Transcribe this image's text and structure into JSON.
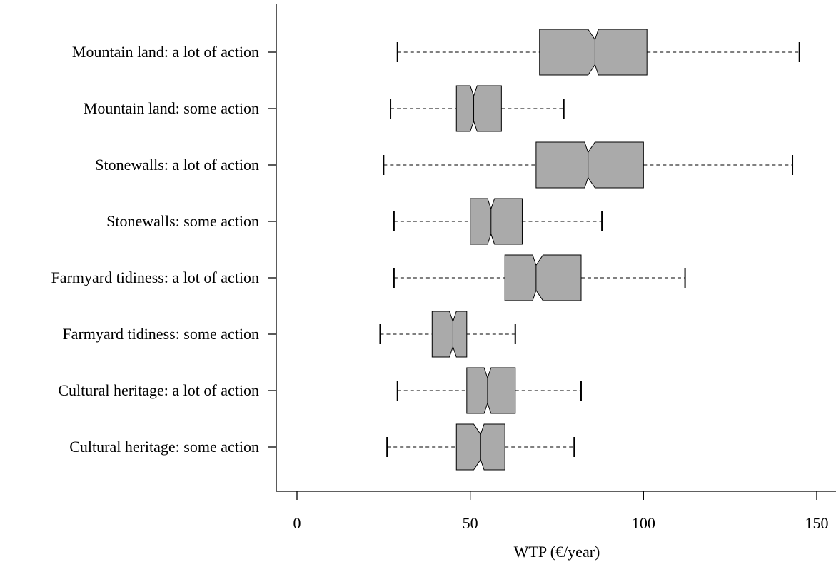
{
  "chart_data": {
    "type": "boxplot",
    "notched": true,
    "orientation": "horizontal",
    "title": "",
    "xlabel": "WTP (€/year)",
    "ylabel": "",
    "xlim": [
      -6,
      156
    ],
    "xticks": [
      0,
      50,
      100,
      150
    ],
    "grid": false,
    "box_color": "#aaaaaa",
    "categories": [
      "Mountain land: a lot of action",
      "Mountain land: some action",
      "Stonewalls: a lot of action",
      "Stonewalls: some action",
      "Farmyard tidiness: a lot of action",
      "Farmyard tidiness: some action",
      "Cultural heritage: a lot of action",
      "Cultural heritage: some action"
    ],
    "boxes": [
      {
        "whisker_low": 29,
        "q1": 70,
        "notch_low": 84,
        "median": 86,
        "notch_high": 87,
        "q3": 101,
        "whisker_high": 145
      },
      {
        "whisker_low": 27,
        "q1": 46,
        "notch_low": 50,
        "median": 51,
        "notch_high": 52,
        "q3": 59,
        "whisker_high": 77
      },
      {
        "whisker_low": 25,
        "q1": 69,
        "notch_low": 83,
        "median": 84,
        "notch_high": 86,
        "q3": 100,
        "whisker_high": 143
      },
      {
        "whisker_low": 28,
        "q1": 50,
        "notch_low": 55,
        "median": 56,
        "notch_high": 57,
        "q3": 65,
        "whisker_high": 88
      },
      {
        "whisker_low": 28,
        "q1": 60,
        "notch_low": 68,
        "median": 69,
        "notch_high": 71,
        "q3": 82,
        "whisker_high": 112
      },
      {
        "whisker_low": 24,
        "q1": 39,
        "notch_low": 44,
        "median": 45,
        "notch_high": 46,
        "q3": 49,
        "whisker_high": 63
      },
      {
        "whisker_low": 29,
        "q1": 49,
        "notch_low": 54,
        "median": 55,
        "notch_high": 56,
        "q3": 63,
        "whisker_high": 82
      },
      {
        "whisker_low": 26,
        "q1": 46,
        "notch_low": 51,
        "median": 53,
        "notch_high": 54,
        "q3": 60,
        "whisker_high": 80
      }
    ]
  }
}
